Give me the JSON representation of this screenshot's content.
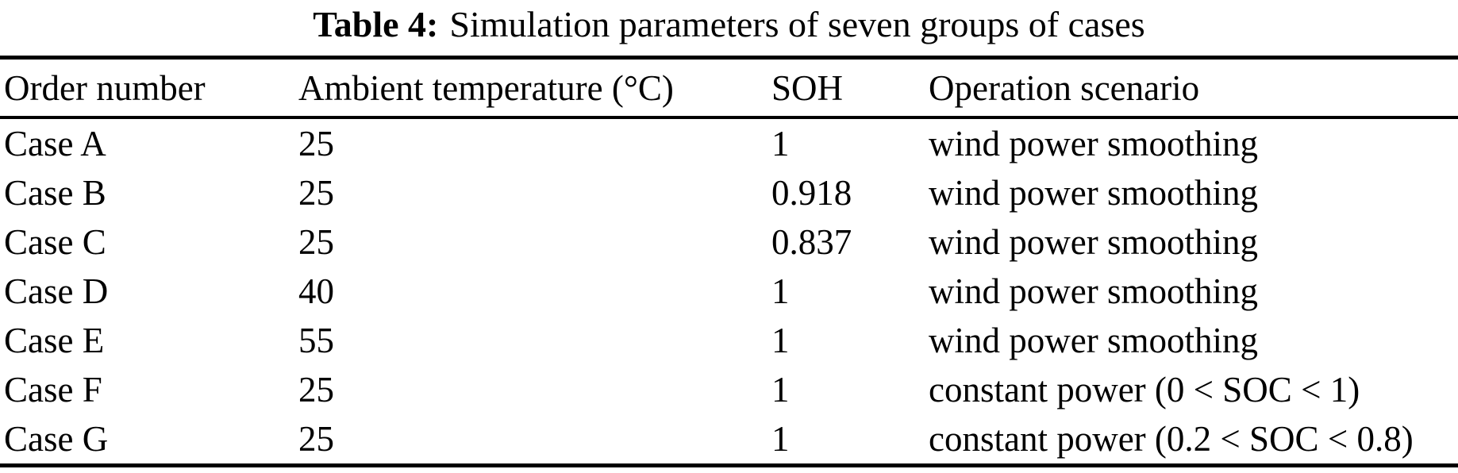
{
  "caption": {
    "label": "Table 4:",
    "text": "Simulation parameters of seven groups of cases"
  },
  "table": {
    "columns": [
      "Order number",
      "Ambient temperature (°C)",
      "SOH",
      "Operation scenario"
    ],
    "rows": [
      [
        "Case A",
        "25",
        "1",
        "wind power smoothing"
      ],
      [
        "Case B",
        "25",
        "0.918",
        "wind power smoothing"
      ],
      [
        "Case C",
        "25",
        "0.837",
        "wind power smoothing"
      ],
      [
        "Case D",
        "40",
        "1",
        "wind power smoothing"
      ],
      [
        "Case E",
        "55",
        "1",
        "wind power smoothing"
      ],
      [
        "Case F",
        "25",
        "1",
        "constant power (0 < SOC < 1)"
      ],
      [
        "Case G",
        "25",
        "1",
        "constant power (0.2 < SOC < 0.8)"
      ]
    ]
  },
  "colors": {
    "text": "#000000",
    "background": "#ffffff",
    "rule": "#000000"
  }
}
